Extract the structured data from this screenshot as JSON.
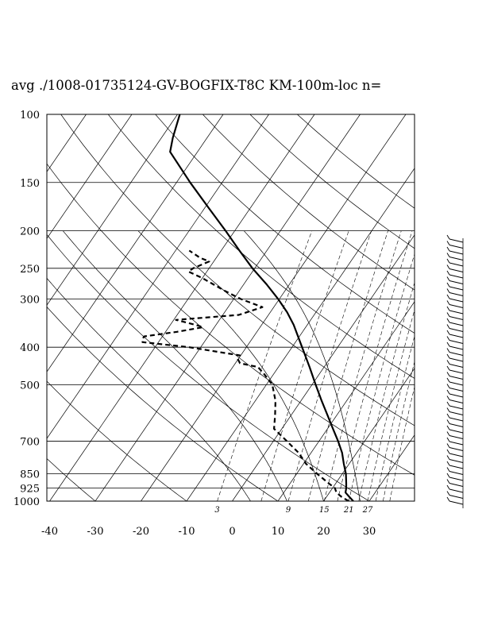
{
  "chart_data": {
    "type": "skew-t log-p sounding",
    "title": "avg ./1008-01735124-GV-BOGFIX-T8C KM-100m-loc n=",
    "x_axis": {
      "label": "",
      "ticks": [
        "-40",
        "-30",
        "-20",
        "-10",
        "0",
        "10",
        "20",
        "30"
      ],
      "range": [
        -40,
        40
      ]
    },
    "y_axis": {
      "label": "",
      "ticks": [
        "100",
        "150",
        "200",
        "250",
        "300",
        "400",
        "500",
        "700",
        "850",
        "925",
        "1000"
      ],
      "range": [
        1000,
        100
      ],
      "scale": "log"
    },
    "mixing_ratio_labels": [
      "3",
      "9",
      "15",
      "21",
      "27"
    ],
    "grid": true,
    "temperature": [
      {
        "p": 1000,
        "t": 26.5
      },
      {
        "p": 975,
        "t": 25.0
      },
      {
        "p": 950,
        "t": 23.5
      },
      {
        "p": 925,
        "t": 23.0
      },
      {
        "p": 900,
        "t": 22.3
      },
      {
        "p": 850,
        "t": 20.8
      },
      {
        "p": 800,
        "t": 18.8
      },
      {
        "p": 750,
        "t": 16.8
      },
      {
        "p": 700,
        "t": 14.2
      },
      {
        "p": 650,
        "t": 11.2
      },
      {
        "p": 600,
        "t": 8.0
      },
      {
        "p": 550,
        "t": 4.5
      },
      {
        "p": 500,
        "t": 0.8
      },
      {
        "p": 450,
        "t": -3.2
      },
      {
        "p": 400,
        "t": -7.8
      },
      {
        "p": 350,
        "t": -13.0
      },
      {
        "p": 325,
        "t": -16.3
      },
      {
        "p": 300,
        "t": -20.3
      },
      {
        "p": 275,
        "t": -25.0
      },
      {
        "p": 250,
        "t": -30.5
      },
      {
        "p": 225,
        "t": -36.0
      },
      {
        "p": 200,
        "t": -42.0
      },
      {
        "p": 175,
        "t": -49.0
      },
      {
        "p": 150,
        "t": -57.0
      },
      {
        "p": 125,
        "t": -66.0
      },
      {
        "p": 115,
        "t": -67.5
      },
      {
        "p": 100,
        "t": -69.5
      }
    ],
    "dewpoint": [
      {
        "p": 1000,
        "t": 25.5
      },
      {
        "p": 975,
        "t": 23.3
      },
      {
        "p": 950,
        "t": 21.5
      },
      {
        "p": 925,
        "t": 20.5
      },
      {
        "p": 900,
        "t": 18.5
      },
      {
        "p": 850,
        "t": 14.5
      },
      {
        "p": 800,
        "t": 10.5
      },
      {
        "p": 750,
        "t": 7.3
      },
      {
        "p": 700,
        "t": 3.0
      },
      {
        "p": 650,
        "t": -1.7
      },
      {
        "p": 600,
        "t": -3.5
      },
      {
        "p": 550,
        "t": -5.6
      },
      {
        "p": 500,
        "t": -8.7
      },
      {
        "p": 470,
        "t": -12.0
      },
      {
        "p": 450,
        "t": -14.5
      },
      {
        "p": 440,
        "t": -19.0
      },
      {
        "p": 430,
        "t": -20.0
      },
      {
        "p": 420,
        "t": -20.2
      },
      {
        "p": 400,
        "t": -32.5
      },
      {
        "p": 388,
        "t": -43.5
      },
      {
        "p": 380,
        "t": -44.0
      },
      {
        "p": 375,
        "t": -44.0
      },
      {
        "p": 365,
        "t": -37.5
      },
      {
        "p": 355,
        "t": -32.5
      },
      {
        "p": 350,
        "t": -34.5
      },
      {
        "p": 340,
        "t": -39.5
      },
      {
        "p": 330,
        "t": -26.5
      },
      {
        "p": 315,
        "t": -22.5
      },
      {
        "p": 300,
        "t": -28.5
      },
      {
        "p": 285,
        "t": -33.5
      },
      {
        "p": 265,
        "t": -40.0
      },
      {
        "p": 255,
        "t": -44.0
      },
      {
        "p": 250,
        "t": -43.5
      },
      {
        "p": 240,
        "t": -41.0
      },
      {
        "p": 235,
        "t": -43.5
      },
      {
        "p": 225,
        "t": -47.0
      }
    ]
  }
}
